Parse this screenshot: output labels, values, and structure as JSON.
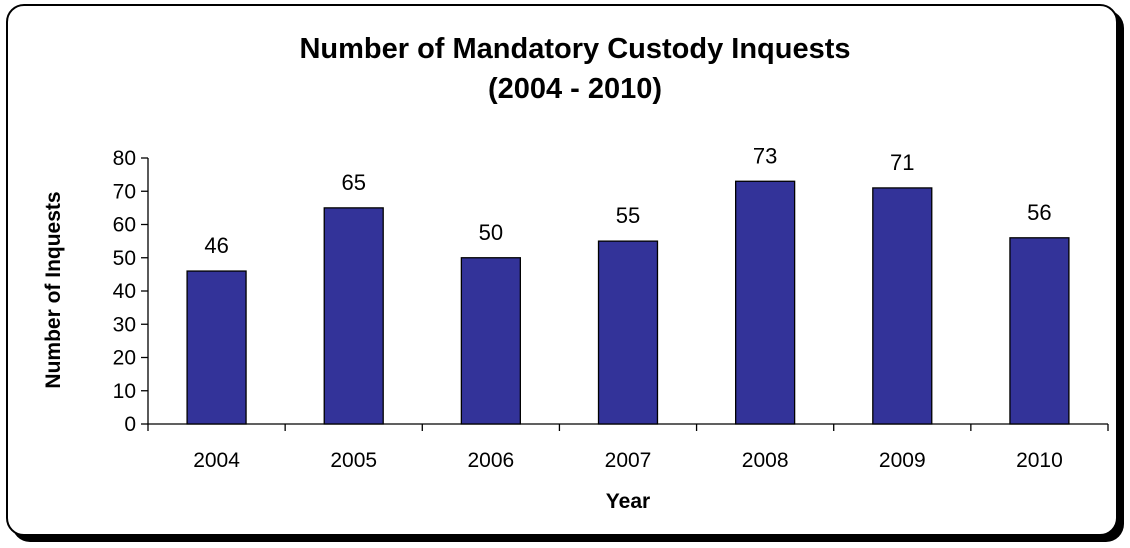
{
  "chart_data": {
    "type": "bar",
    "title": [
      "Number of Mandatory Custody Inquests",
      "(2004 - 2010)"
    ],
    "xlabel": "Year",
    "ylabel": "Number of Inquests",
    "categories": [
      "2004",
      "2005",
      "2006",
      "2007",
      "2008",
      "2009",
      "2010"
    ],
    "values": [
      46,
      65,
      50,
      55,
      73,
      71,
      56
    ],
    "data_labels": [
      "46",
      "65",
      "50",
      "55",
      "73",
      "71",
      "56"
    ],
    "ylim": [
      0,
      80
    ],
    "yticks": [
      0,
      10,
      20,
      30,
      40,
      50,
      60,
      70,
      80
    ],
    "grid": false,
    "legend": "none",
    "bar_color": "#333399"
  }
}
